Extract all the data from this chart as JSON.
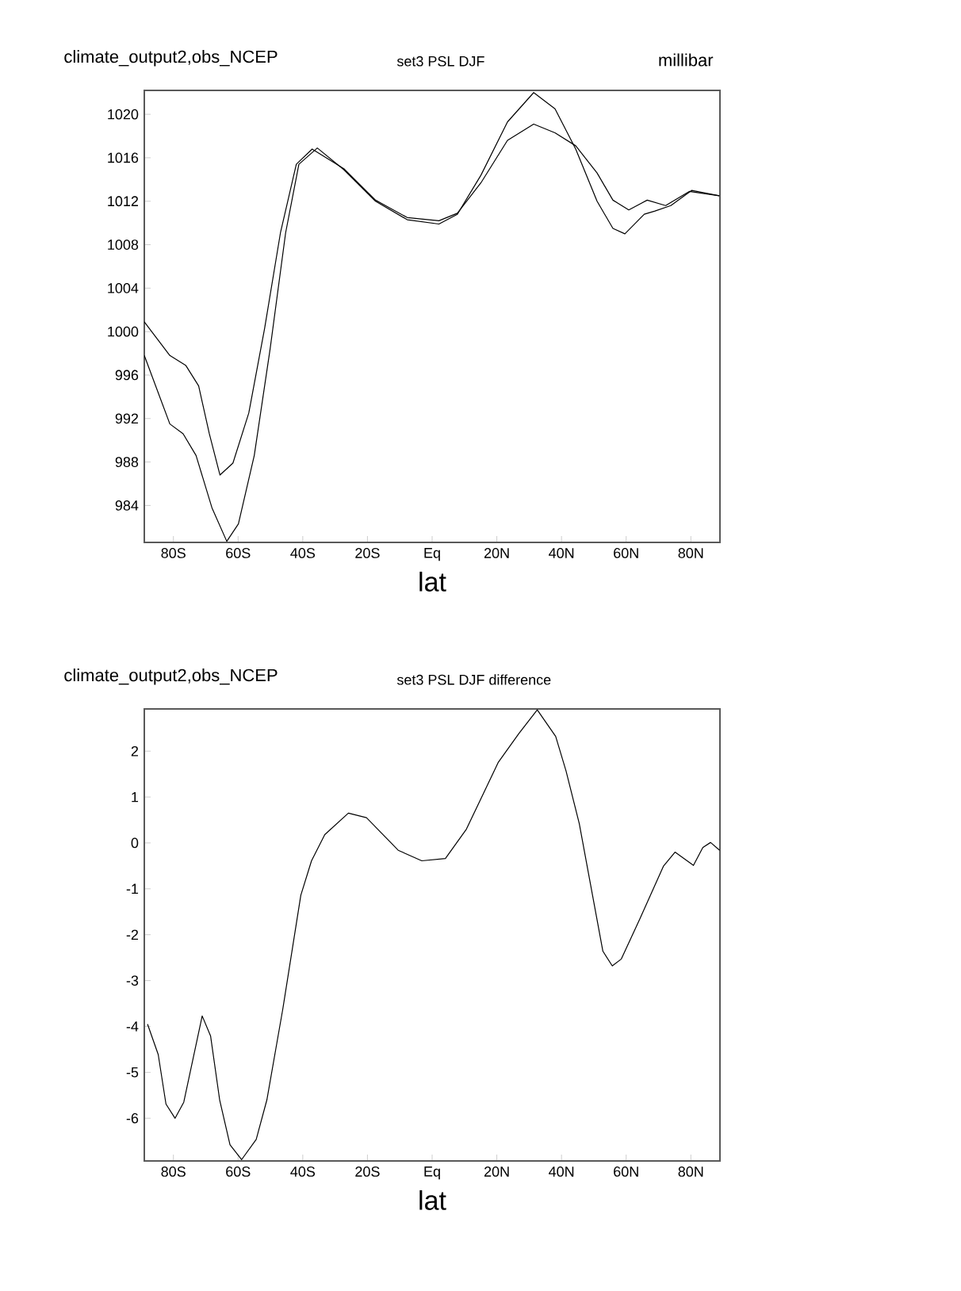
{
  "chart_data": [
    {
      "type": "line",
      "title": "climate_output2,obs_NCEP",
      "subtitle": "set3 PSL DJF",
      "xlabel": "lat",
      "annotations": [
        "millibar"
      ],
      "xlim": [
        -89,
        89
      ],
      "ylim": [
        980.6,
        1022.2
      ],
      "xticks": [
        {
          "value": -80,
          "label": "80S"
        },
        {
          "value": -60,
          "label": "60S"
        },
        {
          "value": -40,
          "label": "40S"
        },
        {
          "value": -20,
          "label": "20S"
        },
        {
          "value": 0,
          "label": "Eq"
        },
        {
          "value": 20,
          "label": "20N"
        },
        {
          "value": 40,
          "label": "40N"
        },
        {
          "value": 60,
          "label": "60N"
        },
        {
          "value": 80,
          "label": "80N"
        }
      ],
      "yticks": [
        984,
        988,
        992,
        996,
        1000,
        1004,
        1008,
        1012,
        1016,
        1020
      ],
      "series": [
        {
          "color": "#000000",
          "x": [
            -89,
            -81.1,
            -77,
            -73,
            -68.1,
            -63.5,
            -59.9,
            -55,
            -50.1,
            -45.3,
            -41.2,
            -35.5,
            -27.3,
            -17.5,
            -7.7,
            2.1,
            7.8,
            15.1,
            23.3,
            31.4,
            38,
            44.4,
            51,
            55.9,
            59.6,
            65.6,
            68.9,
            73.8,
            80.3,
            88.8
          ],
          "values": [
            997.8,
            991.5,
            990.6,
            988.6,
            983.8,
            980.7,
            982.3,
            988.6,
            998.4,
            1009.1,
            1015.4,
            1016.9,
            1014.9,
            1012,
            1010.3,
            1009.9,
            1010.8,
            1014.4,
            1019.3,
            1022,
            1020.5,
            1016.8,
            1012,
            1009.5,
            1009,
            1010.8,
            1011.1,
            1011.6,
            1013,
            1012.5
          ]
        },
        {
          "color": "#000000",
          "x": [
            -89,
            -81.1,
            -76.2,
            -72.2,
            -68.9,
            -65.6,
            -61.6,
            -56.7,
            -51.8,
            -46.9,
            -42,
            -37.1,
            -27.3,
            -17.5,
            -7.7,
            2.1,
            7.8,
            15.1,
            23.3,
            31.4,
            38,
            44.4,
            51,
            55.9,
            60.8,
            66.5,
            72.2,
            79.5,
            88.8
          ],
          "values": [
            1000.9,
            997.8,
            996.9,
            995,
            990.6,
            986.8,
            987.9,
            992.5,
            1000.3,
            1009.1,
            1015.4,
            1016.8,
            1015,
            1012.1,
            1010.5,
            1010.2,
            1010.9,
            1013.7,
            1017.6,
            1019.1,
            1018.3,
            1017.1,
            1014.6,
            1012.1,
            1011.2,
            1012.1,
            1011.6,
            1012.9,
            1012.5
          ]
        }
      ]
    },
    {
      "type": "line",
      "title": "climate_output2,obs_NCEP",
      "subtitle": "set3 PSL DJF difference",
      "xlabel": "lat",
      "xlim": [
        -89,
        89
      ],
      "ylim": [
        -6.93,
        2.92
      ],
      "xticks": [
        {
          "value": -80,
          "label": "80S"
        },
        {
          "value": -60,
          "label": "60S"
        },
        {
          "value": -40,
          "label": "40S"
        },
        {
          "value": -20,
          "label": "20S"
        },
        {
          "value": 0,
          "label": "Eq"
        },
        {
          "value": 20,
          "label": "20N"
        },
        {
          "value": 40,
          "label": "40N"
        },
        {
          "value": 60,
          "label": "60N"
        },
        {
          "value": 80,
          "label": "80N"
        }
      ],
      "yticks": [
        -6,
        -5,
        -4,
        -3,
        -2,
        -1,
        0,
        1,
        2
      ],
      "series": [
        {
          "color": "#000000",
          "x": [
            -88,
            -84.7,
            -82.3,
            -79.5,
            -76.8,
            -71.1,
            -68.5,
            -65.7,
            -62.5,
            -58.9,
            -54.4,
            -51.1,
            -46.2,
            -40.6,
            -37.3,
            -33.2,
            -25.9,
            -20.3,
            -10.5,
            -3.2,
            4.1,
            10.6,
            20.4,
            26.8,
            32.5,
            38.2,
            41.4,
            45.5,
            52.8,
            55.7,
            58.5,
            64.2,
            71.5,
            75.1,
            80.8,
            83.7,
            86.1,
            88.9
          ],
          "values": [
            -3.95,
            -4.61,
            -5.69,
            -6.0,
            -5.65,
            -3.77,
            -4.21,
            -5.6,
            -6.58,
            -6.9,
            -6.46,
            -5.6,
            -3.63,
            -1.14,
            -0.39,
            0.18,
            0.65,
            0.55,
            -0.16,
            -0.39,
            -0.34,
            0.3,
            1.75,
            2.38,
            2.9,
            2.32,
            1.57,
            0.42,
            -2.36,
            -2.68,
            -2.53,
            -1.66,
            -0.51,
            -0.2,
            -0.49,
            -0.1,
            0.01,
            -0.16
          ]
        }
      ]
    }
  ]
}
